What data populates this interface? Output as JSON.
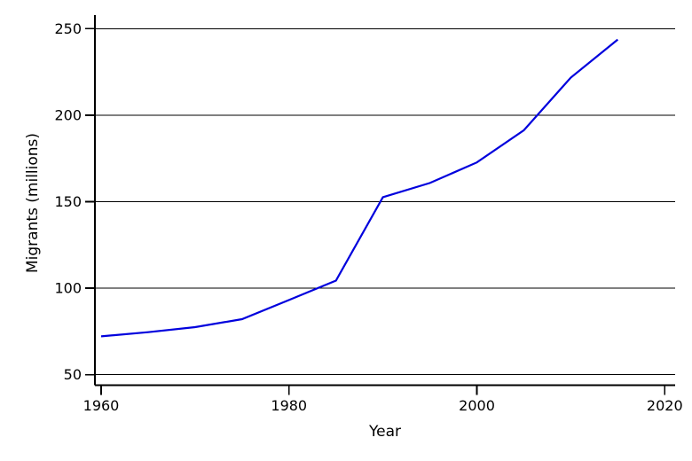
{
  "chart_data": {
    "type": "line",
    "title": "",
    "xlabel": "Year",
    "ylabel": "Migrants (millions)",
    "x": [
      1960,
      1965,
      1970,
      1975,
      1980,
      1985,
      1990,
      1995,
      2000,
      2005,
      2010,
      2015
    ],
    "values": [
      72.2,
      74.6,
      77.5,
      82.1,
      93.2,
      104.4,
      152.6,
      160.8,
      172.7,
      191.3,
      221.7,
      243.7
    ],
    "xticks": [
      1960,
      1980,
      2000,
      2020
    ],
    "yticks": [
      50,
      100,
      150,
      200,
      250
    ],
    "xlim": [
      1959.3,
      2021.1
    ],
    "ylim": [
      44,
      258
    ],
    "grid": "horizontal",
    "legend": "none",
    "line_color": "#0000dd",
    "axis_color": "#000000",
    "background_color": "#ffffff"
  }
}
